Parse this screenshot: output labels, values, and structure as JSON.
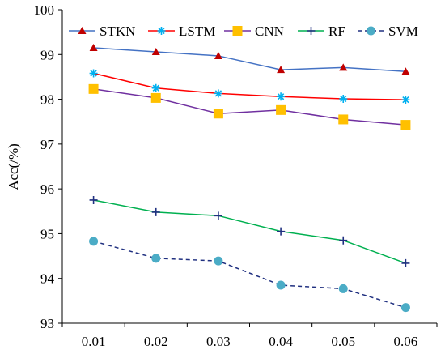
{
  "chart_data": {
    "type": "line",
    "xlabel": "",
    "ylabel": "Acc(/%)",
    "x": [
      0.01,
      0.02,
      0.03,
      0.04,
      0.05,
      0.06
    ],
    "x_tick_labels": [
      "0.01",
      "0.02",
      "0.03",
      "0.04",
      "0.05",
      "0.06"
    ],
    "ylim": [
      93,
      100
    ],
    "y_ticks": [
      93,
      94,
      95,
      96,
      97,
      98,
      99,
      100
    ],
    "grid": false,
    "legend_position": "top",
    "series": [
      {
        "name": "STKN",
        "values": [
          99.15,
          99.06,
          98.97,
          98.66,
          98.71,
          98.62
        ],
        "color": "#4472c4",
        "marker_color": "#c00000",
        "marker": "triangle",
        "dashed": false
      },
      {
        "name": "LSTM",
        "values": [
          98.58,
          98.25,
          98.13,
          98.06,
          98.01,
          97.99
        ],
        "color": "#ff0000",
        "marker_color": "#00b0f0",
        "marker": "star",
        "dashed": false
      },
      {
        "name": "CNN",
        "values": [
          98.23,
          98.03,
          97.68,
          97.76,
          97.55,
          97.43
        ],
        "color": "#7030a0",
        "marker_color": "#ffc000",
        "marker": "square",
        "dashed": false
      },
      {
        "name": "RF",
        "values": [
          95.75,
          95.48,
          95.4,
          95.05,
          94.85,
          94.34
        ],
        "color": "#00b050",
        "marker_color": "#203080",
        "marker": "plus",
        "dashed": false
      },
      {
        "name": "SVM",
        "values": [
          94.83,
          94.45,
          94.39,
          93.85,
          93.77,
          93.35
        ],
        "color": "#203080",
        "marker_color": "#4bacc6",
        "marker": "circle",
        "dashed": true
      }
    ]
  }
}
